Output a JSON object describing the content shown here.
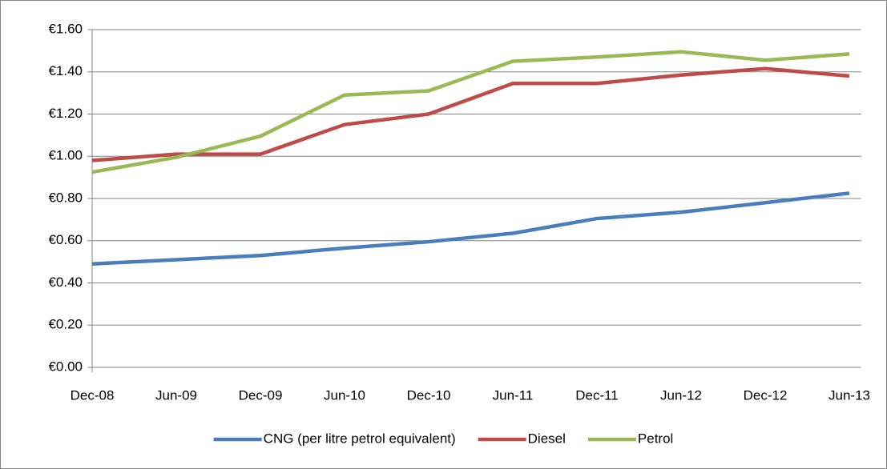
{
  "chart_data": {
    "type": "line",
    "categories": [
      "Dec-08",
      "Jun-09",
      "Dec-09",
      "Jun-10",
      "Dec-10",
      "Jun-11",
      "Dec-11",
      "Jun-12",
      "Dec-12",
      "Jun-13"
    ],
    "series": [
      {
        "name": "CNG (per litre petrol equivalent)",
        "color": "#4a7ebb",
        "values": [
          0.49,
          0.51,
          0.53,
          0.565,
          0.595,
          0.635,
          0.705,
          0.735,
          0.78,
          0.825
        ]
      },
      {
        "name": "Diesel",
        "color": "#be4b48",
        "values": [
          0.98,
          1.01,
          1.01,
          1.15,
          1.2,
          1.345,
          1.345,
          1.385,
          1.415,
          1.38
        ]
      },
      {
        "name": "Petrol",
        "color": "#98b954",
        "values": [
          0.925,
          0.995,
          1.095,
          1.29,
          1.31,
          1.45,
          1.47,
          1.495,
          1.455,
          1.485
        ]
      }
    ],
    "ylim": [
      0,
      1.6
    ],
    "yticks": [
      {
        "value": 0,
        "label": "€0.00"
      },
      {
        "value": 0.2,
        "label": "€0.20"
      },
      {
        "value": 0.4,
        "label": "€0.40"
      },
      {
        "value": 0.6,
        "label": "€0.60"
      },
      {
        "value": 0.8,
        "label": "€0.80"
      },
      {
        "value": 1.0,
        "label": "€1.00"
      },
      {
        "value": 1.2,
        "label": "€1.20"
      },
      {
        "value": 1.4,
        "label": "€1.40"
      },
      {
        "value": 1.6,
        "label": "€1.60"
      }
    ],
    "grid": true,
    "legend": "bottom"
  }
}
